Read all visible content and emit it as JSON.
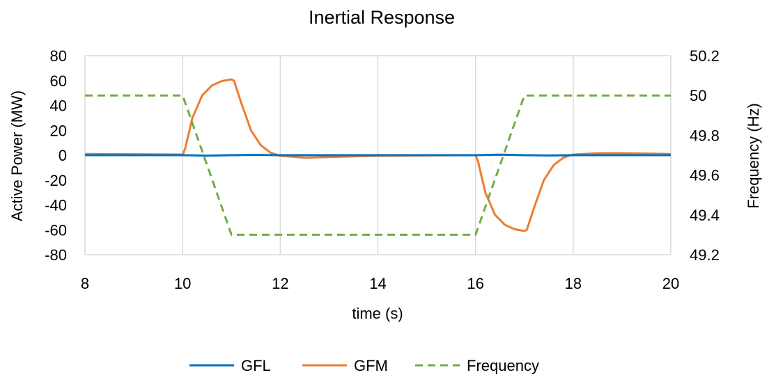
{
  "chart_data": {
    "type": "line",
    "title": "Inertial Response",
    "xlabel": "time (s)",
    "ylabel": "Active Power (MW)",
    "y2label": "Frequency (Hz)",
    "xlim": [
      8,
      20
    ],
    "ylim": [
      -80,
      80
    ],
    "y2lim": [
      49.2,
      50.2
    ],
    "x_ticks": [
      "8",
      "10",
      "12",
      "14",
      "16",
      "18",
      "20"
    ],
    "y_ticks": [
      "80",
      "60",
      "40",
      "20",
      "0",
      "-20",
      "-40",
      "-60",
      "-80"
    ],
    "y2_ticks": [
      "50.2",
      "50",
      "49.8",
      "49.6",
      "49.4",
      "49.2"
    ],
    "grid": "vertical",
    "legend": "bottom",
    "series": [
      {
        "name": "GFL",
        "color": "#0070c0",
        "style": "solid",
        "axis": "left",
        "x": [
          8,
          10,
          10.5,
          11,
          11.5,
          12,
          14,
          16,
          16.5,
          17,
          17.5,
          18,
          20
        ],
        "y": [
          0,
          0,
          -0.4,
          0,
          0.3,
          0,
          0,
          0,
          0.4,
          0,
          -0.3,
          0,
          0
        ]
      },
      {
        "name": "GFM",
        "color": "#ed7d31",
        "style": "solid",
        "axis": "left",
        "x": [
          8,
          10,
          10.05,
          10.2,
          10.4,
          10.6,
          10.8,
          11,
          11.05,
          11.2,
          11.4,
          11.6,
          11.8,
          12,
          12.5,
          13,
          14,
          16,
          16.05,
          16.2,
          16.4,
          16.6,
          16.8,
          17,
          17.05,
          17.2,
          17.4,
          17.6,
          17.8,
          18,
          18.5,
          19,
          20
        ],
        "y": [
          1,
          0.5,
          5,
          30,
          48,
          56,
          59.5,
          61,
          60,
          42,
          20,
          8,
          2,
          -0.5,
          -2,
          -1.5,
          -0.5,
          0,
          -5,
          -30,
          -48,
          -56,
          -59.5,
          -61,
          -60,
          -42,
          -20,
          -8,
          -2,
          0.5,
          1.5,
          1.5,
          1
        ]
      },
      {
        "name": "Frequency",
        "color": "#70ad47",
        "style": "dashed",
        "axis": "right",
        "x": [
          8,
          10,
          11,
          16,
          17,
          20
        ],
        "y": [
          50,
          50,
          49.3,
          49.3,
          50,
          50
        ]
      }
    ]
  }
}
